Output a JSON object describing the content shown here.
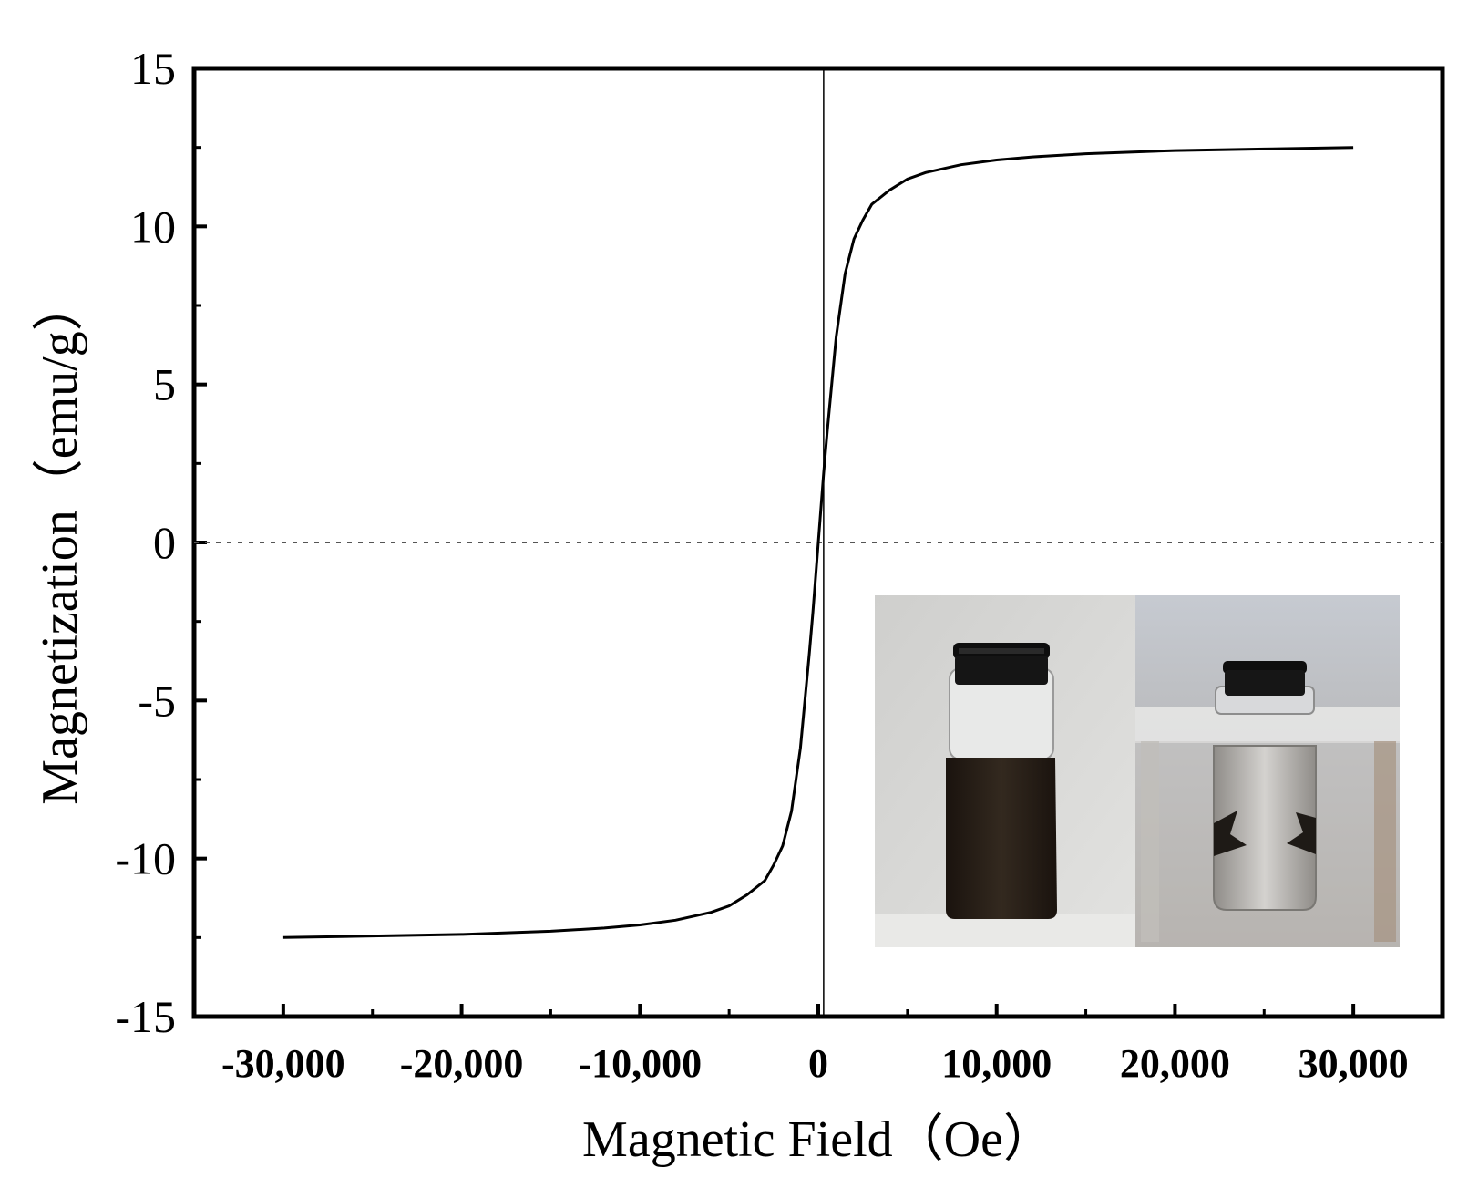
{
  "chart_data": {
    "type": "line",
    "title": "",
    "xlabel": "Magnetic Field（Oe）",
    "ylabel": "Magnetization（emu/g）",
    "xlim": [
      -35000,
      35000
    ],
    "ylim": [
      -15,
      15
    ],
    "x_ticks": [
      -30000,
      -20000,
      -10000,
      0,
      10000,
      20000,
      30000
    ],
    "x_tick_labels": [
      "-30,000",
      "-20,000",
      "-10,000",
      "0",
      "10,000",
      "20,000",
      "30,000"
    ],
    "y_ticks": [
      -15,
      -10,
      -5,
      0,
      5,
      10,
      15
    ],
    "y_tick_labels": [
      "-15",
      "-10",
      "-5",
      "0",
      "5",
      "10",
      "15"
    ],
    "grid": false,
    "legend": "none",
    "reference_line": {
      "y": 0,
      "style": "dotted"
    },
    "vertical_reference_line": {
      "x": 300
    },
    "series": [
      {
        "x": [
          -30000,
          -25000,
          -20000,
          -15000,
          -12000,
          -10000,
          -8000,
          -6000,
          -5000,
          -4000,
          -3000,
          -2500,
          -2000,
          -1500,
          -1000,
          -500,
          -300,
          0,
          300,
          500,
          1000,
          1500,
          2000,
          2500,
          3000,
          4000,
          5000,
          6000,
          8000,
          10000,
          12000,
          15000,
          20000,
          25000,
          30000
        ],
        "y": [
          -12.5,
          -12.45,
          -12.4,
          -12.3,
          -12.2,
          -12.1,
          -11.95,
          -11.7,
          -11.5,
          -11.15,
          -10.7,
          -10.2,
          -9.6,
          -8.5,
          -6.5,
          -3.5,
          -2.2,
          0,
          2.2,
          3.5,
          6.5,
          8.5,
          9.6,
          10.2,
          10.7,
          11.15,
          11.5,
          11.7,
          11.95,
          12.1,
          12.2,
          12.3,
          12.4,
          12.45,
          12.5
        ],
        "color": "#000000"
      }
    ]
  },
  "inset": {
    "description_free": true,
    "colors": {
      "wall_left": "#d6d6d4",
      "wall_right": "#cfd2d6",
      "liquid_dark": "#2a211b",
      "cap": "#121212",
      "liquid_separated": "#b9b7b5"
    }
  }
}
